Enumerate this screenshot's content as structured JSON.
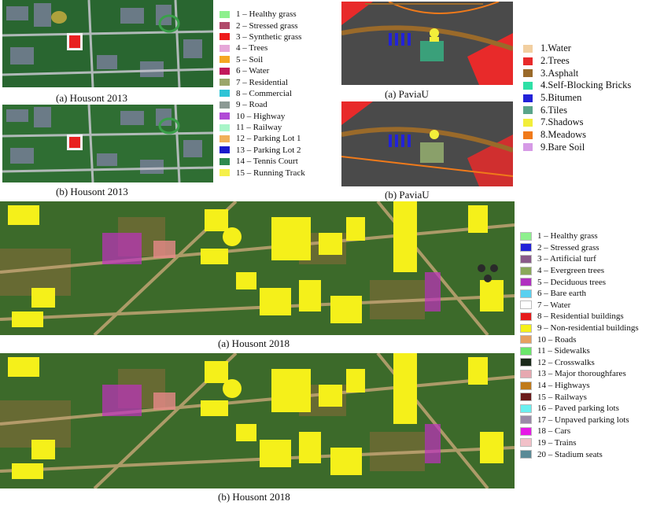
{
  "captions": {
    "houston2013_a": "(a) Housont 2013",
    "houston2013_b": "(b) Housont 2013",
    "paviau_a": "(a) PaviaU",
    "paviau_b": "(b) PaviaU",
    "houston2018_a": "(a) Housont 2018",
    "houston2018_b": "(b) Housont 2018"
  },
  "legend_houston2013": [
    {
      "label": "1 – Healthy grass",
      "color": "#8ef08e"
    },
    {
      "label": "2 – Stressed grass",
      "color": "#b04a6a"
    },
    {
      "label": "3 – Synthetic grass",
      "color": "#ee1c1c"
    },
    {
      "label": "4 – Trees",
      "color": "#e6a6d8"
    },
    {
      "label": "5 – Soil",
      "color": "#f5a623"
    },
    {
      "label": "6 – Water",
      "color": "#c2185b"
    },
    {
      "label": "7 – Residential",
      "color": "#9aa66a"
    },
    {
      "label": "8 – Commercial",
      "color": "#2ec4d6"
    },
    {
      "label": "9 – Road",
      "color": "#8c9a94"
    },
    {
      "label": "10 – Highway",
      "color": "#b04ad6"
    },
    {
      "label": "11 – Railway",
      "color": "#a8f5c8"
    },
    {
      "label": "12 – Parking Lot 1",
      "color": "#f0b05a"
    },
    {
      "label": "13 – Parking Lot 2",
      "color": "#1a1acc"
    },
    {
      "label": "14 – Tennis Court",
      "color": "#2e8a4e"
    },
    {
      "label": "15 – Running Track",
      "color": "#f5f04a"
    }
  ],
  "legend_paviau": [
    {
      "label": "1.Water",
      "color": "#f2cfa0"
    },
    {
      "label": "2.Trees",
      "color": "#e82a2a"
    },
    {
      "label": "3.Asphalt",
      "color": "#9a6a2a"
    },
    {
      "label": "4.Self-Blocking Bricks",
      "color": "#2ee0a6"
    },
    {
      "label": "5.Bitumen",
      "color": "#2222d8"
    },
    {
      "label": "6.Tiles",
      "color": "#5aa58a"
    },
    {
      "label": "7.Shadows",
      "color": "#f2ee3a"
    },
    {
      "label": "8.Meadows",
      "color": "#f07a1a"
    },
    {
      "label": "9.Bare Soil",
      "color": "#d69ae6"
    }
  ],
  "legend_houston2018": [
    {
      "label": "1 – Healthy grass",
      "color": "#8ef08e"
    },
    {
      "label": "2 – Stressed grass",
      "color": "#2222d8"
    },
    {
      "label": "3 – Artificial turf",
      "color": "#8a5a8a"
    },
    {
      "label": "4 – Evergreen trees",
      "color": "#8aa85a"
    },
    {
      "label": "5 – Deciduous trees",
      "color": "#b030c0"
    },
    {
      "label": "6 – Bare earth",
      "color": "#5ad0f0"
    },
    {
      "label": "7 – Water",
      "color": "#ffffff"
    },
    {
      "label": "8 – Residential buildings",
      "color": "#e61a1a"
    },
    {
      "label": "9 – Non-residential buildings",
      "color": "#f5f01a"
    },
    {
      "label": "10 – Roads",
      "color": "#e6a060"
    },
    {
      "label": "11 – Sidewalks",
      "color": "#6ae66a"
    },
    {
      "label": "12 – Crosswalks",
      "color": "#1a2a1a"
    },
    {
      "label": "13 – Major thoroughfares",
      "color": "#e6a8b0"
    },
    {
      "label": "14 – Highways",
      "color": "#c07a1a"
    },
    {
      "label": "15 – Railways",
      "color": "#6a1a1a"
    },
    {
      "label": "16 – Paved parking lots",
      "color": "#6af0f0"
    },
    {
      "label": "17 – Unpaved parking lots",
      "color": "#9a8aa8"
    },
    {
      "label": "18 – Cars",
      "color": "#e61ae6"
    },
    {
      "label": "19 – Trains",
      "color": "#f2c0c8"
    },
    {
      "label": "20 – Stadium seats",
      "color": "#5a8a96"
    }
  ]
}
